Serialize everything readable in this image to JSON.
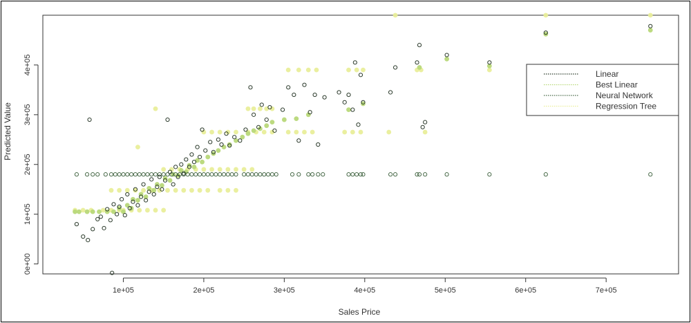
{
  "chart_data": {
    "type": "scatter",
    "title": "",
    "xlabel": "Sales Price",
    "ylabel": "Predicted Value",
    "xlim": [
      0,
      790000
    ],
    "ylim": [
      -20000,
      500000
    ],
    "xticks": [
      100000,
      200000,
      300000,
      400000,
      500000,
      600000,
      700000
    ],
    "xtick_labels": [
      "1e+05",
      "2e+05",
      "3e+05",
      "4e+05",
      "5e+05",
      "6e+05",
      "7e+05"
    ],
    "yticks": [
      0,
      100000,
      200000,
      300000,
      400000
    ],
    "ytick_labels": [
      "0e+00",
      "1e+05",
      "2e+05",
      "3e+05",
      "4e+05"
    ],
    "grid": false,
    "legend_position": "right",
    "series": [
      {
        "name": "Linear",
        "color": "#2b3a2b",
        "marker": "open-circle",
        "points": [
          [
            42000,
            80000
          ],
          [
            50000,
            55000
          ],
          [
            56000,
            48000
          ],
          [
            58000,
            290000
          ],
          [
            62000,
            70000
          ],
          [
            68000,
            90000
          ],
          [
            72000,
            95000
          ],
          [
            76000,
            72000
          ],
          [
            80000,
            110000
          ],
          [
            84000,
            88000
          ],
          [
            86000,
            -18000
          ],
          [
            88000,
            120000
          ],
          [
            92000,
            100000
          ],
          [
            95000,
            115000
          ],
          [
            98000,
            130000
          ],
          [
            102000,
            98000
          ],
          [
            105000,
            140000
          ],
          [
            108000,
            112000
          ],
          [
            112000,
            125000
          ],
          [
            115000,
            150000
          ],
          [
            118000,
            118000
          ],
          [
            122000,
            135000
          ],
          [
            125000,
            160000
          ],
          [
            128000,
            128000
          ],
          [
            132000,
            145000
          ],
          [
            135000,
            170000
          ],
          [
            138000,
            140000
          ],
          [
            142000,
            155000
          ],
          [
            145000,
            175000
          ],
          [
            148000,
            150000
          ],
          [
            152000,
            168000
          ],
          [
            155000,
            290000
          ],
          [
            158000,
            185000
          ],
          [
            162000,
            160000
          ],
          [
            165000,
            195000
          ],
          [
            168000,
            175000
          ],
          [
            172000,
            200000
          ],
          [
            175000,
            182000
          ],
          [
            178000,
            210000
          ],
          [
            182000,
            195000
          ],
          [
            185000,
            220000
          ],
          [
            188000,
            205000
          ],
          [
            192000,
            235000
          ],
          [
            195000,
            215000
          ],
          [
            198000,
            270000
          ],
          [
            202000,
            228000
          ],
          [
            208000,
            245000
          ],
          [
            212000,
            225000
          ],
          [
            218000,
            250000
          ],
          [
            222000,
            240000
          ],
          [
            228000,
            262000
          ],
          [
            232000,
            238000
          ],
          [
            238000,
            255000
          ],
          [
            245000,
            248000
          ],
          [
            252000,
            270000
          ],
          [
            258000,
            355000
          ],
          [
            262000,
            300000
          ],
          [
            268000,
            275000
          ],
          [
            272000,
            320000
          ],
          [
            278000,
            290000
          ],
          [
            282000,
            315000
          ],
          [
            288000,
            268000
          ],
          [
            298000,
            310000
          ],
          [
            305000,
            355000
          ],
          [
            312000,
            340000
          ],
          [
            318000,
            248000
          ],
          [
            325000,
            360000
          ],
          [
            332000,
            305000
          ],
          [
            338000,
            340000
          ],
          [
            342000,
            240000
          ],
          [
            350000,
            335000
          ],
          [
            368000,
            345000
          ],
          [
            375000,
            325000
          ],
          [
            380000,
            340000
          ],
          [
            385000,
            310000
          ],
          [
            388000,
            405000
          ],
          [
            392000,
            280000
          ],
          [
            395000,
            380000
          ],
          [
            398000,
            325000
          ],
          [
            432000,
            345000
          ],
          [
            438000,
            395000
          ],
          [
            465000,
            405000
          ],
          [
            468000,
            440000
          ],
          [
            472000,
            275000
          ],
          [
            475000,
            285000
          ],
          [
            502000,
            420000
          ],
          [
            555000,
            405000
          ],
          [
            625000,
            465000
          ],
          [
            755000,
            478000
          ]
        ]
      },
      {
        "name": "Best Linear",
        "color": "#b8d879",
        "marker": "filled-circle",
        "points": [
          [
            40000,
            105000
          ],
          [
            45000,
            105000
          ],
          [
            55000,
            105000
          ],
          [
            62000,
            105000
          ],
          [
            70000,
            105000
          ],
          [
            80000,
            105000
          ],
          [
            88000,
            105000
          ],
          [
            95000,
            112000
          ],
          [
            100000,
            105000
          ],
          [
            105000,
            118000
          ],
          [
            110000,
            112000
          ],
          [
            112000,
            130000
          ],
          [
            118000,
            128000
          ],
          [
            122000,
            140000
          ],
          [
            128000,
            135000
          ],
          [
            132000,
            152000
          ],
          [
            138000,
            148000
          ],
          [
            142000,
            160000
          ],
          [
            148000,
            158000
          ],
          [
            152000,
            172000
          ],
          [
            158000,
            168000
          ],
          [
            162000,
            180000
          ],
          [
            168000,
            178000
          ],
          [
            172000,
            188000
          ],
          [
            178000,
            185000
          ],
          [
            182000,
            198000
          ],
          [
            188000,
            195000
          ],
          [
            192000,
            208000
          ],
          [
            198000,
            205000
          ],
          [
            205000,
            215000
          ],
          [
            212000,
            222000
          ],
          [
            218000,
            228000
          ],
          [
            225000,
            235000
          ],
          [
            232000,
            240000
          ],
          [
            240000,
            248000
          ],
          [
            248000,
            255000
          ],
          [
            255000,
            262000
          ],
          [
            262000,
            268000
          ],
          [
            270000,
            272000
          ],
          [
            278000,
            278000
          ],
          [
            285000,
            285000
          ],
          [
            300000,
            290000
          ],
          [
            315000,
            292000
          ],
          [
            330000,
            300000
          ],
          [
            380000,
            310000
          ],
          [
            398000,
            322000
          ],
          [
            468000,
            395000
          ],
          [
            502000,
            412000
          ],
          [
            555000,
            398000
          ],
          [
            625000,
            462000
          ],
          [
            755000,
            470000
          ]
        ]
      },
      {
        "name": "Neural Network",
        "color": "#4a6b4a",
        "marker": "open-circle",
        "points": [
          [
            42000,
            180000
          ],
          [
            55000,
            180000
          ],
          [
            62000,
            180000
          ],
          [
            68000,
            180000
          ],
          [
            78000,
            180000
          ],
          [
            85000,
            180000
          ],
          [
            90000,
            180000
          ],
          [
            95000,
            180000
          ],
          [
            100000,
            180000
          ],
          [
            105000,
            180000
          ],
          [
            110000,
            180000
          ],
          [
            115000,
            180000
          ],
          [
            120000,
            180000
          ],
          [
            125000,
            180000
          ],
          [
            130000,
            180000
          ],
          [
            135000,
            180000
          ],
          [
            140000,
            180000
          ],
          [
            145000,
            180000
          ],
          [
            150000,
            180000
          ],
          [
            155000,
            180000
          ],
          [
            160000,
            180000
          ],
          [
            165000,
            180000
          ],
          [
            170000,
            180000
          ],
          [
            175000,
            180000
          ],
          [
            180000,
            180000
          ],
          [
            185000,
            180000
          ],
          [
            190000,
            180000
          ],
          [
            195000,
            180000
          ],
          [
            200000,
            180000
          ],
          [
            205000,
            180000
          ],
          [
            210000,
            180000
          ],
          [
            215000,
            180000
          ],
          [
            220000,
            180000
          ],
          [
            225000,
            180000
          ],
          [
            230000,
            180000
          ],
          [
            235000,
            180000
          ],
          [
            240000,
            180000
          ],
          [
            250000,
            180000
          ],
          [
            255000,
            180000
          ],
          [
            260000,
            180000
          ],
          [
            265000,
            180000
          ],
          [
            270000,
            180000
          ],
          [
            275000,
            180000
          ],
          [
            280000,
            180000
          ],
          [
            285000,
            180000
          ],
          [
            290000,
            180000
          ],
          [
            310000,
            180000
          ],
          [
            318000,
            180000
          ],
          [
            330000,
            180000
          ],
          [
            335000,
            180000
          ],
          [
            342000,
            180000
          ],
          [
            348000,
            180000
          ],
          [
            380000,
            180000
          ],
          [
            385000,
            180000
          ],
          [
            390000,
            180000
          ],
          [
            395000,
            180000
          ],
          [
            398000,
            180000
          ],
          [
            432000,
            180000
          ],
          [
            438000,
            180000
          ],
          [
            465000,
            180000
          ],
          [
            468000,
            180000
          ],
          [
            475000,
            180000
          ],
          [
            502000,
            180000
          ],
          [
            555000,
            180000
          ],
          [
            625000,
            180000
          ],
          [
            755000,
            180000
          ]
        ]
      },
      {
        "name": "Regression Tree",
        "color": "#e9ee9a",
        "marker": "filled-circle",
        "points": [
          [
            40000,
            108000
          ],
          [
            50000,
            108000
          ],
          [
            60000,
            108000
          ],
          [
            75000,
            108000
          ],
          [
            85000,
            108000
          ],
          [
            95000,
            108000
          ],
          [
            100000,
            108000
          ],
          [
            110000,
            108000
          ],
          [
            120000,
            108000
          ],
          [
            130000,
            108000
          ],
          [
            140000,
            108000
          ],
          [
            150000,
            108000
          ],
          [
            85000,
            148000
          ],
          [
            95000,
            148000
          ],
          [
            105000,
            148000
          ],
          [
            115000,
            148000
          ],
          [
            125000,
            148000
          ],
          [
            135000,
            148000
          ],
          [
            145000,
            148000
          ],
          [
            155000,
            148000
          ],
          [
            165000,
            148000
          ],
          [
            175000,
            148000
          ],
          [
            185000,
            148000
          ],
          [
            195000,
            148000
          ],
          [
            205000,
            148000
          ],
          [
            220000,
            148000
          ],
          [
            230000,
            148000
          ],
          [
            240000,
            148000
          ],
          [
            140000,
            312000
          ],
          [
            118000,
            235000
          ],
          [
            150000,
            190000
          ],
          [
            160000,
            190000
          ],
          [
            170000,
            190000
          ],
          [
            180000,
            190000
          ],
          [
            190000,
            190000
          ],
          [
            200000,
            190000
          ],
          [
            210000,
            190000
          ],
          [
            220000,
            190000
          ],
          [
            230000,
            190000
          ],
          [
            240000,
            190000
          ],
          [
            250000,
            190000
          ],
          [
            260000,
            190000
          ],
          [
            200000,
            265000
          ],
          [
            210000,
            265000
          ],
          [
            220000,
            265000
          ],
          [
            230000,
            265000
          ],
          [
            240000,
            265000
          ],
          [
            255000,
            312000
          ],
          [
            262000,
            312000
          ],
          [
            270000,
            312000
          ],
          [
            278000,
            312000
          ],
          [
            285000,
            312000
          ],
          [
            255000,
            265000
          ],
          [
            265000,
            265000
          ],
          [
            275000,
            265000
          ],
          [
            285000,
            265000
          ],
          [
            305000,
            265000
          ],
          [
            315000,
            265000
          ],
          [
            325000,
            265000
          ],
          [
            335000,
            265000
          ],
          [
            305000,
            390000
          ],
          [
            318000,
            390000
          ],
          [
            330000,
            390000
          ],
          [
            340000,
            390000
          ],
          [
            380000,
            390000
          ],
          [
            390000,
            390000
          ],
          [
            398000,
            390000
          ],
          [
            375000,
            265000
          ],
          [
            385000,
            265000
          ],
          [
            395000,
            265000
          ],
          [
            430000,
            265000
          ],
          [
            438000,
            500000
          ],
          [
            465000,
            390000
          ],
          [
            470000,
            390000
          ],
          [
            475000,
            265000
          ],
          [
            555000,
            390000
          ],
          [
            625000,
            500000
          ],
          [
            755000,
            500000
          ]
        ]
      }
    ]
  }
}
